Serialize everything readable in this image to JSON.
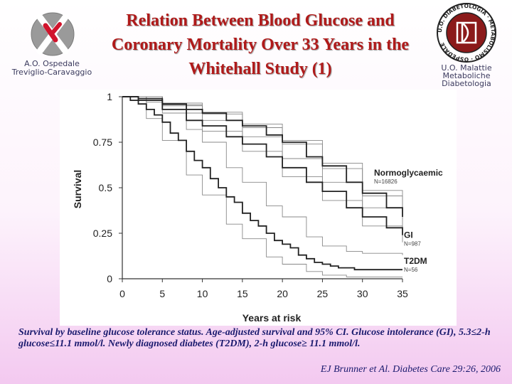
{
  "header": {
    "title": "Relation Between Blood Glucose and Coronary Mortality Over 33 Years in the Whitehall Study (1)",
    "left_logo": {
      "icon": "hospital-cross-logo-icon",
      "lines": [
        "A.O. Ospedale",
        "Treviglio-Caravaggio"
      ]
    },
    "right_logo": {
      "icon": "diabetology-seal-icon",
      "lines": [
        "U.O. Malattie",
        "Metaboliche",
        "Diabetologia"
      ],
      "seal_text": "U.O. DIABETOLOGIA · METABOLISMO · OSPEDALE"
    }
  },
  "colors": {
    "title": "#b01a1a",
    "caption": "#1a1a6e",
    "curve": "#222222",
    "ci": "#888888"
  },
  "chart_data": {
    "type": "line",
    "title": "",
    "xlabel": "Years at risk",
    "ylabel": "Survival",
    "xlim": [
      0,
      35
    ],
    "ylim": [
      0,
      1
    ],
    "x_ticks": [
      0,
      5,
      10,
      15,
      20,
      25,
      30,
      35
    ],
    "y_ticks": [
      0,
      0.25,
      0.5,
      0.75,
      1
    ],
    "y_tick_labels": [
      "0",
      "0.25",
      "0.5",
      "0.75",
      "1"
    ],
    "grid": false,
    "legend": "inline labels at right end of curves",
    "series": [
      {
        "name": "Normoglycaemic",
        "n_label": "N=16826",
        "role": "main",
        "x": [
          0,
          2,
          5,
          8,
          10,
          13,
          15,
          18,
          20,
          23,
          25,
          28,
          30,
          33,
          35
        ],
        "y": [
          1.0,
          0.99,
          0.96,
          0.93,
          0.91,
          0.87,
          0.84,
          0.79,
          0.75,
          0.67,
          0.62,
          0.53,
          0.47,
          0.39,
          0.34
        ]
      },
      {
        "name": "",
        "role": "ci",
        "x": [
          0,
          5,
          10,
          15,
          20,
          25,
          30,
          35
        ],
        "y": [
          1.0,
          0.965,
          0.915,
          0.85,
          0.76,
          0.635,
          0.485,
          0.35
        ]
      },
      {
        "name": "",
        "role": "ci",
        "x": [
          0,
          5,
          10,
          15,
          20,
          25,
          30,
          35
        ],
        "y": [
          1.0,
          0.955,
          0.905,
          0.83,
          0.74,
          0.605,
          0.455,
          0.33
        ]
      },
      {
        "name": "GI",
        "n_label": "N=987",
        "role": "main",
        "x": [
          0,
          2,
          5,
          8,
          10,
          13,
          15,
          18,
          20,
          23,
          25,
          28,
          30,
          33,
          35
        ],
        "y": [
          1.0,
          0.98,
          0.93,
          0.87,
          0.84,
          0.78,
          0.74,
          0.67,
          0.61,
          0.53,
          0.48,
          0.39,
          0.34,
          0.28,
          0.24
        ]
      },
      {
        "name": "",
        "role": "ci",
        "x": [
          0,
          5,
          10,
          15,
          20,
          25,
          30,
          35
        ],
        "y": [
          1.0,
          0.95,
          0.87,
          0.78,
          0.66,
          0.53,
          0.39,
          0.28
        ]
      },
      {
        "name": "",
        "role": "ci",
        "x": [
          0,
          5,
          10,
          15,
          20,
          25,
          30,
          35
        ],
        "y": [
          1.0,
          0.91,
          0.81,
          0.7,
          0.56,
          0.43,
          0.29,
          0.2
        ]
      },
      {
        "name": "T2DM",
        "n_label": "N=56",
        "role": "main",
        "x": [
          0,
          1,
          2,
          3,
          4,
          5,
          6,
          7,
          8,
          9,
          10,
          11,
          12,
          13,
          14,
          15,
          16,
          17,
          18,
          19,
          20,
          21,
          22,
          23,
          24,
          25,
          26,
          27,
          28,
          29,
          30,
          31,
          32,
          33,
          34,
          35
        ],
        "y": [
          1.0,
          0.98,
          0.96,
          0.93,
          0.9,
          0.86,
          0.8,
          0.76,
          0.7,
          0.65,
          0.61,
          0.55,
          0.5,
          0.45,
          0.42,
          0.36,
          0.32,
          0.29,
          0.25,
          0.21,
          0.19,
          0.17,
          0.13,
          0.11,
          0.09,
          0.08,
          0.07,
          0.06,
          0.06,
          0.05,
          0.05,
          0.05,
          0.05,
          0.05,
          0.05,
          0.05
        ]
      },
      {
        "name": "",
        "role": "ci",
        "x": [
          0,
          3,
          5,
          8,
          10,
          13,
          15,
          18,
          20,
          23,
          25,
          28,
          30,
          35
        ],
        "y": [
          1.0,
          0.97,
          0.93,
          0.82,
          0.75,
          0.61,
          0.53,
          0.4,
          0.34,
          0.23,
          0.18,
          0.15,
          0.14,
          0.13
        ]
      },
      {
        "name": "",
        "role": "ci",
        "x": [
          0,
          3,
          5,
          8,
          10,
          13,
          15,
          18,
          20,
          23,
          25,
          28,
          30,
          35
        ],
        "y": [
          1.0,
          0.88,
          0.76,
          0.57,
          0.46,
          0.3,
          0.22,
          0.12,
          0.08,
          0.04,
          0.02,
          0.01,
          0.01,
          0.01
        ]
      }
    ]
  },
  "caption": "Survival by baseline glucose tolerance status. Age-adjusted survival and 95% CI. Glucose intolerance (GI), 5.3≤2-h glucose≤11.1 mmol/l. Newly diagnosed diabetes (T2DM), 2-h glucose≥ 11.1 mmol/l.",
  "citation": "EJ Brunner et Al. Diabetes Care 29:26, 2006"
}
